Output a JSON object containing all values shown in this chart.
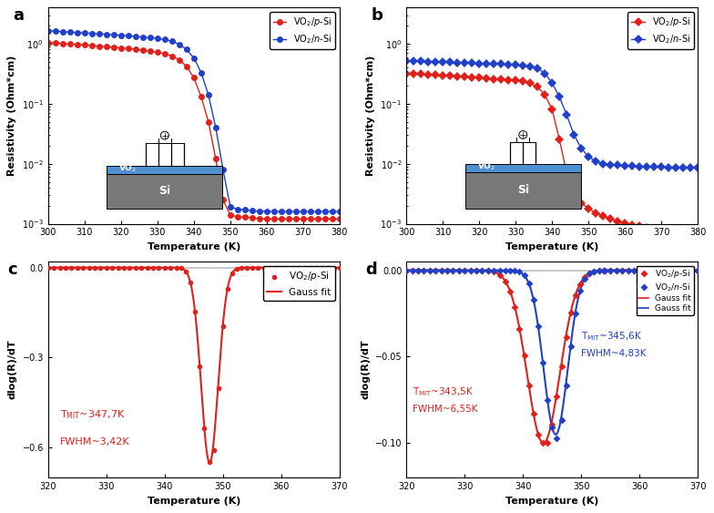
{
  "panel_a": {
    "title": "a",
    "xlabel": "Temperature (K)",
    "ylabel": "Resistivity (Ohm*cm)",
    "xlim": [
      300,
      380
    ],
    "red_x": [
      300,
      302,
      304,
      306,
      308,
      310,
      312,
      314,
      316,
      318,
      320,
      322,
      324,
      326,
      328,
      330,
      332,
      334,
      336,
      338,
      340,
      342,
      344,
      346,
      348,
      350,
      352,
      354,
      356,
      358,
      360,
      362,
      364,
      366,
      368,
      370,
      372,
      374,
      376,
      378,
      380
    ],
    "red_y": [
      1.05,
      1.03,
      1.01,
      0.99,
      0.97,
      0.95,
      0.93,
      0.91,
      0.89,
      0.87,
      0.85,
      0.83,
      0.81,
      0.78,
      0.75,
      0.72,
      0.68,
      0.62,
      0.54,
      0.42,
      0.27,
      0.13,
      0.05,
      0.012,
      0.0025,
      0.0014,
      0.0013,
      0.0013,
      0.00125,
      0.00122,
      0.0012,
      0.0012,
      0.0012,
      0.0012,
      0.0012,
      0.0012,
      0.0012,
      0.0012,
      0.0012,
      0.0012,
      0.0012
    ],
    "blue_x": [
      300,
      302,
      304,
      306,
      308,
      310,
      312,
      314,
      316,
      318,
      320,
      322,
      324,
      326,
      328,
      330,
      332,
      334,
      336,
      338,
      340,
      342,
      344,
      346,
      348,
      350,
      352,
      354,
      356,
      358,
      360,
      362,
      364,
      366,
      368,
      370,
      372,
      374,
      376,
      378,
      380
    ],
    "blue_y": [
      1.65,
      1.62,
      1.59,
      1.56,
      1.54,
      1.51,
      1.49,
      1.46,
      1.43,
      1.41,
      1.38,
      1.35,
      1.32,
      1.29,
      1.26,
      1.22,
      1.17,
      1.1,
      0.98,
      0.8,
      0.58,
      0.33,
      0.14,
      0.04,
      0.008,
      0.0019,
      0.00175,
      0.0017,
      0.00165,
      0.00162,
      0.0016,
      0.0016,
      0.0016,
      0.0016,
      0.0016,
      0.0016,
      0.0016,
      0.0016,
      0.0016,
      0.0016,
      0.0016
    ]
  },
  "panel_b": {
    "title": "b",
    "xlabel": "Temperature (K)",
    "ylabel": "Resistivity (Ohm*cm)",
    "xlim": [
      300,
      380
    ],
    "red_x": [
      300,
      302,
      304,
      306,
      308,
      310,
      312,
      314,
      316,
      318,
      320,
      322,
      324,
      326,
      328,
      330,
      332,
      334,
      336,
      338,
      340,
      342,
      344,
      346,
      348,
      350,
      352,
      354,
      356,
      358,
      360,
      362,
      364,
      366,
      368,
      370,
      372,
      374,
      376,
      378,
      380
    ],
    "red_y": [
      0.32,
      0.315,
      0.31,
      0.305,
      0.3,
      0.295,
      0.29,
      0.285,
      0.28,
      0.275,
      0.27,
      0.265,
      0.26,
      0.255,
      0.25,
      0.245,
      0.235,
      0.22,
      0.19,
      0.14,
      0.08,
      0.025,
      0.007,
      0.003,
      0.0022,
      0.0018,
      0.0015,
      0.00135,
      0.0012,
      0.0011,
      0.00102,
      0.00096,
      0.00091,
      0.00087,
      0.00083,
      0.0008,
      0.00077,
      0.00075,
      0.00073,
      0.00071,
      0.0007
    ],
    "blue_x": [
      300,
      302,
      304,
      306,
      308,
      310,
      312,
      314,
      316,
      318,
      320,
      322,
      324,
      326,
      328,
      330,
      332,
      334,
      336,
      338,
      340,
      342,
      344,
      346,
      348,
      350,
      352,
      354,
      356,
      358,
      360,
      362,
      364,
      366,
      368,
      370,
      372,
      374,
      376,
      378,
      380
    ],
    "blue_y": [
      0.52,
      0.515,
      0.51,
      0.505,
      0.5,
      0.495,
      0.49,
      0.485,
      0.48,
      0.475,
      0.47,
      0.465,
      0.46,
      0.455,
      0.45,
      0.445,
      0.435,
      0.42,
      0.39,
      0.32,
      0.22,
      0.13,
      0.065,
      0.03,
      0.018,
      0.013,
      0.011,
      0.01,
      0.0097,
      0.0095,
      0.0093,
      0.0091,
      0.009,
      0.0089,
      0.0088,
      0.0088,
      0.0087,
      0.0087,
      0.0087,
      0.0087,
      0.0087
    ]
  },
  "panel_c": {
    "title": "c",
    "xlabel": "Temperature (K)",
    "ylabel": "dlog(R)/dT",
    "xlim": [
      320,
      370
    ],
    "ylim": [
      -0.7,
      0.02
    ],
    "T_MIT": 347.7,
    "FWHM": 3.42,
    "peak": -0.65,
    "yticks": [
      0.0,
      -0.3,
      -0.6
    ]
  },
  "panel_d": {
    "title": "d",
    "xlabel": "Temperature (K)",
    "ylabel": "dlog(R)/dT",
    "xlim": [
      320,
      370
    ],
    "ylim": [
      -0.12,
      0.005
    ],
    "T_MIT_red": 343.5,
    "FWHM_red": 6.55,
    "peak_red": -0.1,
    "T_MIT_blue": 345.6,
    "FWHM_blue": 4.83,
    "peak_blue": -0.095,
    "yticks": [
      0.0,
      -0.05,
      -0.1
    ]
  },
  "colors": {
    "red": "#e0201a",
    "blue": "#2040c8"
  }
}
